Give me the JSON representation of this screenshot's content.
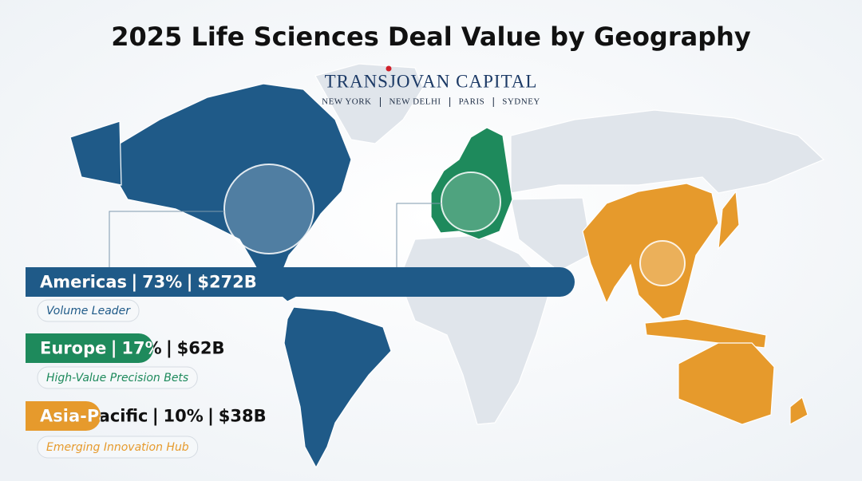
{
  "header": {
    "title": "2025 Life Sciences Deal Value by Geography",
    "brand": "TRANSJOVAN CAPITAL",
    "offices": [
      "NEW YORK",
      "NEW DELHI",
      "PARIS",
      "SYDNEY"
    ]
  },
  "chart_data": {
    "type": "bar",
    "categories": [
      "Americas",
      "Europe",
      "Asia-Pacific"
    ],
    "values": [
      73,
      17,
      10
    ],
    "value_labels": [
      "73%",
      "17%",
      "10%"
    ],
    "deal_value_labels": [
      "$272B",
      "$62B",
      "$38B"
    ],
    "notes": [
      "Volume Leader",
      "High-Value Precision Bets",
      "Emerging Innovation Hub"
    ],
    "colors": [
      "#1f5a88",
      "#1e8a5c",
      "#e69a2c"
    ]
  }
}
